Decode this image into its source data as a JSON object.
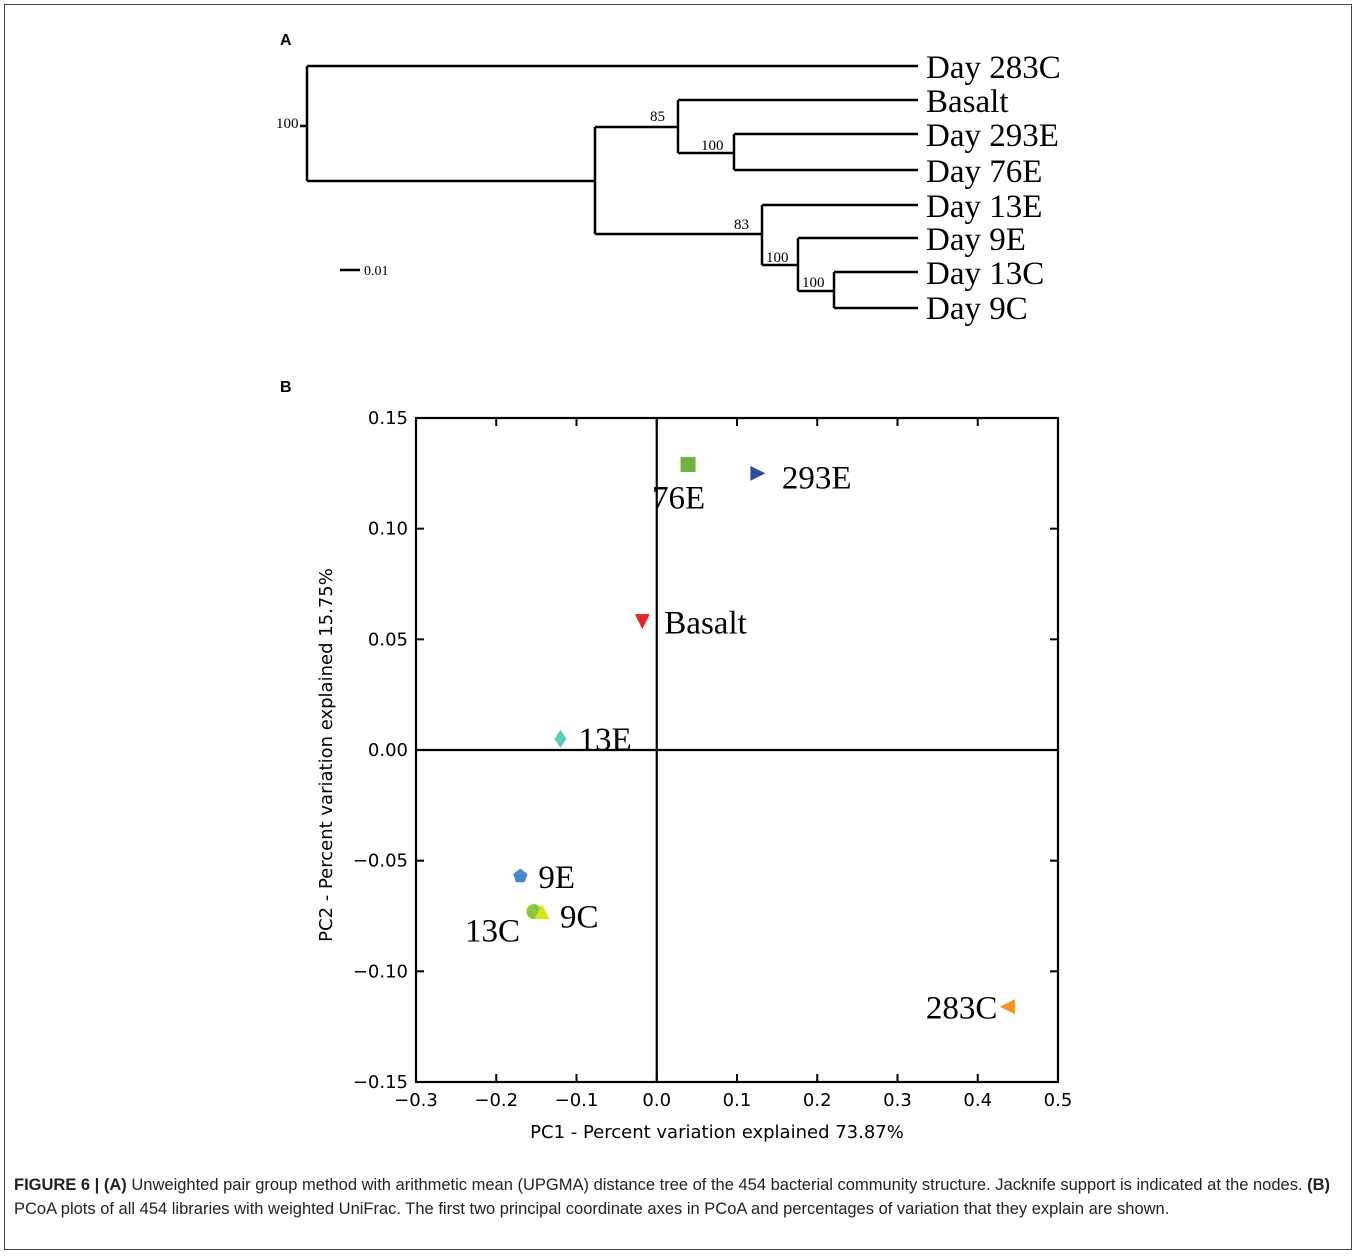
{
  "panel_a": {
    "letter": "A",
    "leaves": [
      "Day 283C",
      "Basalt",
      "Day 293E",
      "Day 76E",
      "Day 13E",
      "Day 9E",
      "Day 13C",
      "Day 9C"
    ],
    "support_values": [
      "100",
      "85",
      "100",
      "83",
      "100",
      "100"
    ],
    "scale_label": "0.01"
  },
  "panel_b": {
    "letter": "B"
  },
  "chart_data": {
    "type": "scatter",
    "xlabel": "PC1 - Percent variation explained 73.87%",
    "ylabel": "PC2 - Percent variation explained 15.75%",
    "xlim": [
      -0.3,
      0.5
    ],
    "ylim": [
      -0.15,
      0.15
    ],
    "xticks": [
      "−0.3",
      "−0.2",
      "−0.1",
      "0.0",
      "0.1",
      "0.2",
      "0.3",
      "0.4",
      "0.5"
    ],
    "yticks": [
      "−0.15",
      "−0.10",
      "−0.05",
      "0.00",
      "0.05",
      "0.10",
      "0.15"
    ],
    "grid": false,
    "points": [
      {
        "label": "76E",
        "x": 0.039,
        "y": 0.129,
        "marker": "square",
        "color": "#6db33f"
      },
      {
        "label": "293E",
        "x": 0.126,
        "y": 0.125,
        "marker": "triangle-right",
        "color": "#2f4ea2"
      },
      {
        "label": "Basalt",
        "x": -0.018,
        "y": 0.058,
        "marker": "triangle-down",
        "color": "#e3262a"
      },
      {
        "label": "13E",
        "x": -0.12,
        "y": 0.005,
        "marker": "diamond",
        "color": "#5fcab8"
      },
      {
        "label": "9E",
        "x": -0.17,
        "y": -0.057,
        "marker": "pentagon",
        "color": "#4a86c8"
      },
      {
        "label": "13C",
        "x": -0.153,
        "y": -0.073,
        "marker": "circle",
        "color": "#8cc63f"
      },
      {
        "label": "9C",
        "x": -0.143,
        "y": -0.073,
        "marker": "triangle-up",
        "color": "#d8e21f"
      },
      {
        "label": "283C",
        "x": 0.437,
        "y": -0.116,
        "marker": "triangle-left",
        "color": "#f7941d"
      }
    ]
  },
  "caption": {
    "figure_label": "FIGURE 6 | ",
    "a_label": "(A)",
    "a_text": " Unweighted pair group method with arithmetic mean (UPGMA) distance tree of the 454 bacterial community structure. Jacknife support is indicated at the nodes. ",
    "b_label": "(B)",
    "b_text": " PCoA plots of all 454 libraries with weighted UniFrac. The first two principal coordinate axes in PCoA and percentages of variation that they explain are shown."
  }
}
